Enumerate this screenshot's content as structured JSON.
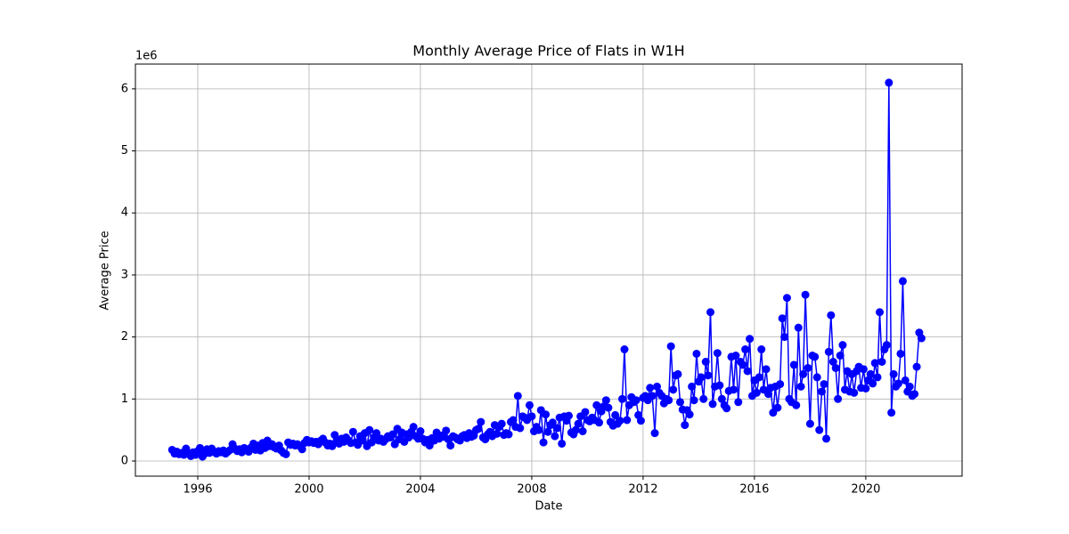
{
  "chart_data": {
    "type": "line",
    "title": "Monthly Average Price of Flats in W1H",
    "x_label": "Date",
    "y_label": "Average Price",
    "y_offset_label": "1e6",
    "xlim": [
      1993.76,
      2023.46
    ],
    "ylim": [
      -0.244,
      6.4
    ],
    "xticks": [
      1996,
      2000,
      2004,
      2008,
      2012,
      2016,
      2020
    ],
    "yticks": [
      0,
      1,
      2,
      3,
      4,
      5,
      6
    ],
    "grid": true,
    "x": [
      1995.08,
      1995.17,
      1995.25,
      1995.33,
      1995.42,
      1995.5,
      1995.58,
      1995.67,
      1995.75,
      1995.83,
      1995.92,
      1996,
      1996.08,
      1996.17,
      1996.25,
      1996.33,
      1996.42,
      1996.5,
      1996.58,
      1996.67,
      1996.75,
      1996.83,
      1996.92,
      1997,
      1997.08,
      1997.17,
      1997.25,
      1997.33,
      1997.42,
      1997.5,
      1997.58,
      1997.67,
      1997.75,
      1997.83,
      1997.92,
      1998,
      1998.08,
      1998.17,
      1998.25,
      1998.33,
      1998.42,
      1998.5,
      1998.58,
      1998.67,
      1998.75,
      1998.83,
      1998.92,
      1999,
      1999.08,
      1999.17,
      1999.25,
      1999.33,
      1999.42,
      1999.5,
      1999.58,
      1999.67,
      1999.75,
      1999.83,
      1999.92,
      2000,
      2000.08,
      2000.17,
      2000.25,
      2000.33,
      2000.42,
      2000.5,
      2000.58,
      2000.67,
      2000.75,
      2000.83,
      2000.92,
      2001,
      2001.08,
      2001.17,
      2001.25,
      2001.33,
      2001.42,
      2001.5,
      2001.58,
      2001.67,
      2001.75,
      2001.83,
      2001.92,
      2002,
      2002.08,
      2002.17,
      2002.25,
      2002.33,
      2002.42,
      2002.5,
      2002.58,
      2002.67,
      2002.75,
      2002.83,
      2002.92,
      2003,
      2003.08,
      2003.17,
      2003.25,
      2003.33,
      2003.42,
      2003.5,
      2003.58,
      2003.67,
      2003.75,
      2003.83,
      2003.92,
      2004,
      2004.08,
      2004.17,
      2004.25,
      2004.33,
      2004.42,
      2004.5,
      2004.58,
      2004.67,
      2004.75,
      2004.83,
      2004.92,
      2005,
      2005.08,
      2005.17,
      2005.25,
      2005.33,
      2005.42,
      2005.5,
      2005.58,
      2005.67,
      2005.75,
      2005.83,
      2005.92,
      2006,
      2006.08,
      2006.17,
      2006.25,
      2006.33,
      2006.42,
      2006.5,
      2006.58,
      2006.67,
      2006.75,
      2006.83,
      2006.92,
      2007,
      2007.08,
      2007.17,
      2007.25,
      2007.33,
      2007.42,
      2007.5,
      2007.58,
      2007.67,
      2007.75,
      2007.83,
      2007.92,
      2008,
      2008.08,
      2008.17,
      2008.25,
      2008.33,
      2008.42,
      2008.5,
      2008.58,
      2008.67,
      2008.75,
      2008.83,
      2008.92,
      2009,
      2009.08,
      2009.17,
      2009.25,
      2009.33,
      2009.42,
      2009.5,
      2009.58,
      2009.67,
      2009.75,
      2009.83,
      2009.92,
      2010,
      2010.08,
      2010.17,
      2010.25,
      2010.33,
      2010.42,
      2010.5,
      2010.58,
      2010.67,
      2010.75,
      2010.83,
      2010.92,
      2011,
      2011.08,
      2011.17,
      2011.25,
      2011.33,
      2011.42,
      2011.5,
      2011.58,
      2011.67,
      2011.75,
      2011.83,
      2011.92,
      2012,
      2012.08,
      2012.17,
      2012.25,
      2012.33,
      2012.42,
      2012.5,
      2012.58,
      2012.67,
      2012.75,
      2012.83,
      2012.92,
      2013,
      2013.08,
      2013.17,
      2013.25,
      2013.33,
      2013.42,
      2013.5,
      2013.58,
      2013.67,
      2013.75,
      2013.83,
      2013.92,
      2014,
      2014.08,
      2014.17,
      2014.25,
      2014.33,
      2014.42,
      2014.5,
      2014.58,
      2014.67,
      2014.75,
      2014.83,
      2014.92,
      2015,
      2015.08,
      2015.17,
      2015.25,
      2015.33,
      2015.42,
      2015.5,
      2015.58,
      2015.67,
      2015.75,
      2015.83,
      2015.92,
      2016,
      2016.08,
      2016.17,
      2016.25,
      2016.33,
      2016.42,
      2016.5,
      2016.58,
      2016.67,
      2016.75,
      2016.83,
      2016.92,
      2017,
      2017.08,
      2017.17,
      2017.25,
      2017.33,
      2017.42,
      2017.5,
      2017.58,
      2017.67,
      2017.75,
      2017.83,
      2017.92,
      2018,
      2018.08,
      2018.17,
      2018.25,
      2018.33,
      2018.42,
      2018.5,
      2018.58,
      2018.67,
      2018.75,
      2018.83,
      2018.92,
      2019,
      2019.08,
      2019.17,
      2019.25,
      2019.33,
      2019.42,
      2019.5,
      2019.58,
      2019.67,
      2019.75,
      2019.83,
      2019.92,
      2020,
      2020.08,
      2020.17,
      2020.25,
      2020.33,
      2020.42,
      2020.5,
      2020.58,
      2020.67,
      2020.75,
      2020.83,
      2020.92,
      2021,
      2021.08,
      2021.17,
      2021.25,
      2021.33,
      2021.42,
      2021.5,
      2021.58,
      2021.67,
      2021.75,
      2021.83,
      2021.92,
      2022
    ],
    "series": [
      {
        "color": "#0000ff",
        "values": [
          0.18,
          0.12,
          0.15,
          0.11,
          0.13,
          0.1,
          0.2,
          0.12,
          0.08,
          0.14,
          0.1,
          0.16,
          0.21,
          0.07,
          0.12,
          0.19,
          0.13,
          0.2,
          0.15,
          0.12,
          0.16,
          0.14,
          0.17,
          0.12,
          0.15,
          0.18,
          0.27,
          0.2,
          0.16,
          0.19,
          0.14,
          0.21,
          0.17,
          0.15,
          0.22,
          0.28,
          0.18,
          0.25,
          0.17,
          0.29,
          0.21,
          0.33,
          0.24,
          0.27,
          0.22,
          0.2,
          0.25,
          0.17,
          0.13,
          0.11,
          0.3,
          0.26,
          0.28,
          0.25,
          0.27,
          0.24,
          0.19,
          0.29,
          0.34,
          0.3,
          0.32,
          0.29,
          0.31,
          0.27,
          0.33,
          0.36,
          0.3,
          0.25,
          0.28,
          0.24,
          0.42,
          0.33,
          0.28,
          0.36,
          0.31,
          0.38,
          0.33,
          0.29,
          0.47,
          0.3,
          0.26,
          0.4,
          0.33,
          0.45,
          0.24,
          0.5,
          0.3,
          0.38,
          0.45,
          0.33,
          0.36,
          0.31,
          0.35,
          0.4,
          0.38,
          0.43,
          0.27,
          0.52,
          0.35,
          0.46,
          0.31,
          0.43,
          0.38,
          0.47,
          0.55,
          0.4,
          0.36,
          0.48,
          0.36,
          0.3,
          0.34,
          0.25,
          0.37,
          0.33,
          0.46,
          0.36,
          0.41,
          0.39,
          0.49,
          0.35,
          0.25,
          0.4,
          0.38,
          0.35,
          0.33,
          0.4,
          0.42,
          0.37,
          0.45,
          0.39,
          0.41,
          0.5,
          0.52,
          0.63,
          0.38,
          0.35,
          0.43,
          0.47,
          0.4,
          0.58,
          0.44,
          0.55,
          0.6,
          0.42,
          0.45,
          0.43,
          0.63,
          0.66,
          0.55,
          1.05,
          0.53,
          0.72,
          0.7,
          0.66,
          0.9,
          0.72,
          0.48,
          0.55,
          0.5,
          0.82,
          0.3,
          0.75,
          0.47,
          0.58,
          0.62,
          0.4,
          0.53,
          0.7,
          0.28,
          0.72,
          0.65,
          0.73,
          0.46,
          0.43,
          0.5,
          0.6,
          0.72,
          0.48,
          0.79,
          0.66,
          0.64,
          0.7,
          0.66,
          0.9,
          0.62,
          0.8,
          0.88,
          0.98,
          0.86,
          0.63,
          0.57,
          0.74,
          0.6,
          0.65,
          1.0,
          1.8,
          0.66,
          0.9,
          1.03,
          0.95,
          0.98,
          0.74,
          0.65,
          1.02,
          1.05,
          0.98,
          1.18,
          1.05,
          0.45,
          1.2,
          1.1,
          1.05,
          0.93,
          1.0,
          0.98,
          1.85,
          1.15,
          1.38,
          1.4,
          0.95,
          0.83,
          0.58,
          0.82,
          0.75,
          1.2,
          0.98,
          1.73,
          1.28,
          1.35,
          1.0,
          1.6,
          1.38,
          2.4,
          0.92,
          1.2,
          1.74,
          1.22,
          1.0,
          0.9,
          0.85,
          1.13,
          1.68,
          1.15,
          1.7,
          0.95,
          1.6,
          1.55,
          1.8,
          1.45,
          1.97,
          1.05,
          1.3,
          1.1,
          1.35,
          1.8,
          1.15,
          1.48,
          1.08,
          1.18,
          0.78,
          1.2,
          0.86,
          1.24,
          2.3,
          2.0,
          2.63,
          1.0,
          0.95,
          1.55,
          0.9,
          2.15,
          1.2,
          1.4,
          2.68,
          1.5,
          0.6,
          1.7,
          1.68,
          1.35,
          0.5,
          1.12,
          1.24,
          0.36,
          1.76,
          2.35,
          1.6,
          1.5,
          1.0,
          1.7,
          1.87,
          1.15,
          1.45,
          1.12,
          1.4,
          1.1,
          1.45,
          1.52,
          1.18,
          1.48,
          1.17,
          1.3,
          1.4,
          1.25,
          1.58,
          1.35,
          2.4,
          1.6,
          1.8,
          1.87,
          6.1,
          0.78,
          1.4,
          1.2,
          1.25,
          1.73,
          2.9,
          1.3,
          1.12,
          1.2,
          1.05,
          1.08,
          1.52,
          2.07,
          1.98
        ]
      }
    ]
  }
}
